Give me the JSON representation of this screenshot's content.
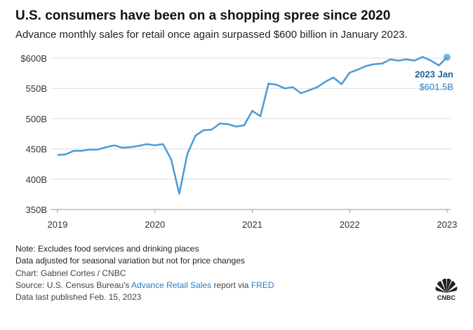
{
  "chart_data": {
    "type": "line",
    "title": "U.S. consumers have been on a shopping spree since 2020",
    "subtitle": "Advance monthly sales for retail once again surpassed $600 billion in January 2023.",
    "x": [
      2019,
      2019.0833,
      2019.1667,
      2019.25,
      2019.3333,
      2019.4167,
      2019.5,
      2019.5833,
      2019.6667,
      2019.75,
      2019.8333,
      2019.9167,
      2020,
      2020.0833,
      2020.1667,
      2020.25,
      2020.3333,
      2020.4167,
      2020.5,
      2020.5833,
      2020.6667,
      2020.75,
      2020.8333,
      2020.9167,
      2021,
      2021.0833,
      2021.1667,
      2021.25,
      2021.3333,
      2021.4167,
      2021.5,
      2021.5833,
      2021.6667,
      2021.75,
      2021.8333,
      2021.9167,
      2022,
      2022.0833,
      2022.1667,
      2022.25,
      2022.3333,
      2022.4167,
      2022.5,
      2022.5833,
      2022.6667,
      2022.75,
      2022.8333,
      2022.9167,
      2023
    ],
    "values": [
      440,
      441,
      447,
      447,
      449,
      449,
      453,
      456,
      452,
      453,
      455,
      458,
      456,
      458,
      433,
      376,
      442,
      472,
      481,
      482,
      492,
      491,
      487,
      489,
      513,
      504,
      558,
      556,
      550,
      552,
      542,
      547,
      552,
      561,
      568,
      557,
      576,
      581,
      587,
      590,
      591,
      598,
      596,
      598,
      596,
      602,
      596,
      588,
      601.5
    ],
    "value_labels": [
      null,
      null,
      null,
      null,
      null,
      null,
      null,
      null,
      null,
      null,
      null,
      null,
      null,
      null,
      null,
      null,
      null,
      null,
      null,
      null,
      null,
      null,
      null,
      null,
      null,
      null,
      null,
      null,
      null,
      null,
      null,
      null,
      null,
      null,
      null,
      null,
      null,
      null,
      null,
      null,
      null,
      null,
      null,
      null,
      null,
      null,
      null,
      null,
      "$601.5B"
    ],
    "annotation": "2023 Jan",
    "color": "#4a9bd6",
    "xlim": [
      2019,
      2023
    ],
    "xticks": [
      2019,
      2020,
      2021,
      2022,
      2023
    ],
    "ylim": [
      350,
      600
    ],
    "yticks": [
      {
        "value": 350,
        "label": "350B"
      },
      {
        "value": 400,
        "label": "400B"
      },
      {
        "value": 450,
        "label": "450B"
      },
      {
        "value": 500,
        "label": "500B"
      },
      {
        "value": 550,
        "label": "550B"
      },
      {
        "value": 600,
        "label": "$600B"
      }
    ],
    "grid": true,
    "notes": [
      "Note: Excludes food services and drinking places",
      "Data adjusted for seasonal variation but not for price changes"
    ],
    "credit": "Chart: Gabriel Cortes / CNBC",
    "source": {
      "prefix": "Source: U.S. Census Bureau's ",
      "link1": "Advance Retail Sales",
      "middle": " report via ",
      "link2": "FRED"
    },
    "published": "Data last published Feb. 15, 2023",
    "logo": "CNBC"
  }
}
